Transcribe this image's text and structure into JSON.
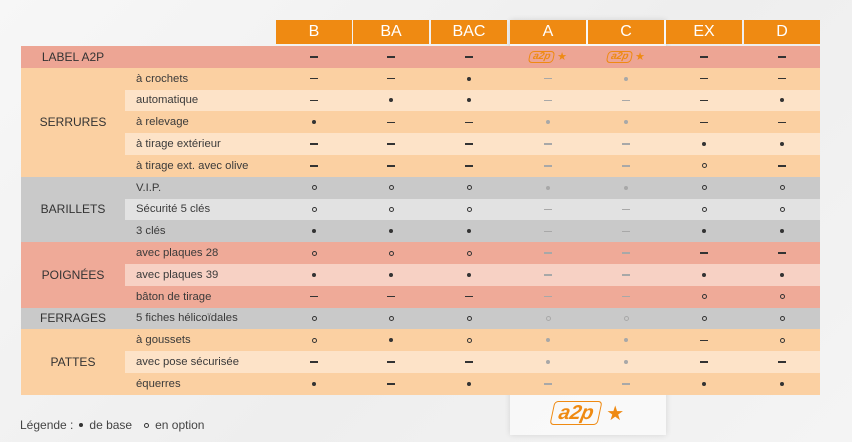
{
  "columns": [
    "B",
    "BA",
    "BAC",
    "A",
    "C",
    "EX",
    "D"
  ],
  "label_row": {
    "title": "LABEL A2P",
    "cells": [
      "dash",
      "dash",
      "dash",
      "badge",
      "badge",
      "dash",
      "dash"
    ],
    "badge_text": "a2p"
  },
  "groups": [
    {
      "name": "SERRURES",
      "rows": [
        {
          "label": "à crochets",
          "cells": [
            "dash",
            "dash",
            "dot",
            "dash",
            "dot",
            "dash",
            "dash"
          ]
        },
        {
          "label": "automatique",
          "cells": [
            "dash",
            "dot",
            "dot",
            "dash",
            "dash",
            "dash",
            "dot"
          ]
        },
        {
          "label": "à relevage",
          "cells": [
            "dot",
            "dash",
            "dash",
            "dot",
            "dot",
            "dash",
            "dash"
          ]
        },
        {
          "label": "à tirage extérieur",
          "cells": [
            "dash",
            "dash",
            "dash",
            "dash",
            "dash",
            "dot",
            "dot"
          ]
        },
        {
          "label": "à tirage ext. avec olive",
          "cells": [
            "dash",
            "dash",
            "dash",
            "dash",
            "dash",
            "ring",
            "dash"
          ]
        }
      ]
    },
    {
      "name": "BARILLETS",
      "rows": [
        {
          "label": "V.I.P.",
          "cells": [
            "ring",
            "ring",
            "ring",
            "dot",
            "dot",
            "ring",
            "ring"
          ]
        },
        {
          "label": "Sécurité 5 clés",
          "cells": [
            "ring",
            "ring",
            "ring",
            "dash",
            "dash",
            "ring",
            "ring"
          ]
        },
        {
          "label": "3 clés",
          "cells": [
            "dot",
            "dot",
            "dot",
            "dash",
            "dash",
            "dot",
            "dot"
          ]
        }
      ]
    },
    {
      "name": "POIGNÉES",
      "rows": [
        {
          "label": "avec plaques 28",
          "cells": [
            "ring",
            "ring",
            "ring",
            "dash",
            "dash",
            "dash",
            "dash"
          ]
        },
        {
          "label": "avec plaques 39",
          "cells": [
            "dot",
            "dot",
            "dot",
            "dash",
            "dash",
            "dot",
            "dot"
          ]
        },
        {
          "label": "bâton de tirage",
          "cells": [
            "dash",
            "dash",
            "dash",
            "dash",
            "dash",
            "ring",
            "ring"
          ]
        }
      ]
    },
    {
      "name": "FERRAGES",
      "rows": [
        {
          "label": "5 fiches hélicoïdales",
          "cells": [
            "ring",
            "ring",
            "ring",
            "ring",
            "ring",
            "ring",
            "ring"
          ]
        }
      ]
    },
    {
      "name": "PATTES",
      "rows": [
        {
          "label": "à goussets",
          "cells": [
            "ring",
            "dot",
            "ring",
            "dot",
            "dot",
            "dash",
            "ring"
          ]
        },
        {
          "label": "avec pose sécurisée",
          "cells": [
            "dash",
            "dash",
            "dash",
            "dot",
            "dot",
            "dash",
            "dash"
          ]
        },
        {
          "label": "équerres",
          "cells": [
            "dot",
            "dash",
            "dot",
            "dash",
            "dash",
            "dot",
            "dot"
          ]
        }
      ]
    }
  ],
  "footer_logo": "a2p",
  "legend": {
    "title": "Légende :",
    "base": "de base",
    "option": "en option"
  },
  "colors": {
    "orange": "#ef8a12",
    "label_row": "#eda594",
    "serrures": [
      "#fbd0a2",
      "#fde3c8"
    ],
    "barillets": [
      "#c9c9c9",
      "#e2e2e2"
    ],
    "poignees": [
      "#efaa98",
      "#f7d1c4"
    ],
    "ferrages": "#c9c9c9",
    "pattes": [
      "#fbd0a2",
      "#fde3c8"
    ]
  }
}
